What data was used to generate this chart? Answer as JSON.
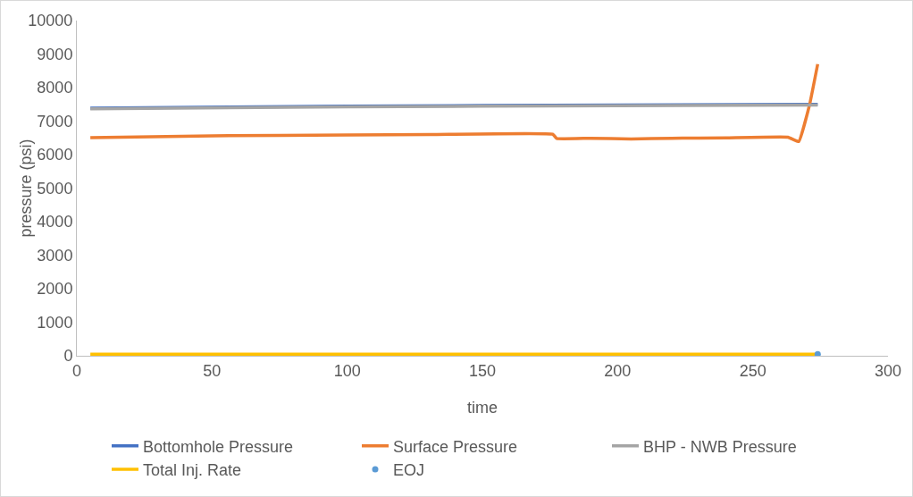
{
  "chart_data": {
    "type": "line",
    "xlabel": "time",
    "ylabel": "pressure (psi)",
    "xlim": [
      0,
      300
    ],
    "xticks": [
      0,
      50,
      100,
      150,
      200,
      250,
      300
    ],
    "ylim": [
      0,
      10000
    ],
    "yticks": [
      0,
      1000,
      2000,
      3000,
      4000,
      5000,
      6000,
      7000,
      8000,
      9000,
      10000
    ],
    "grid": false,
    "legend": "bottom",
    "line_style": "solid",
    "marker": "none",
    "series": [
      {
        "name": "Bottomhole Pressure",
        "color": "#4472c4",
        "x": [
          5,
          100,
          200,
          274
        ],
        "values": [
          7390,
          7450,
          7480,
          7500
        ]
      },
      {
        "name": "Surface Pressure",
        "color": "#ed7d31",
        "x": [
          5,
          50,
          100,
          131,
          176,
          177.5,
          190,
          205,
          220,
          240,
          263,
          267,
          271,
          274
        ],
        "values": [
          6510,
          6560,
          6590,
          6600,
          6610,
          6480,
          6490,
          6470,
          6490,
          6500,
          6520,
          6390,
          7490,
          8700
        ]
      },
      {
        "name": "BHP - NWB Pressure",
        "color": "#a5a5a5",
        "x": [
          5,
          100,
          200,
          274
        ],
        "values": [
          7370,
          7430,
          7460,
          7480
        ]
      },
      {
        "name": "Total Inj. Rate",
        "color": "#ffc000",
        "x": [
          5,
          274
        ],
        "values": [
          50,
          50
        ]
      },
      {
        "name": "EOJ",
        "color": "#5b9bd5",
        "type": "scatter",
        "marker": "circle",
        "x": [
          274
        ],
        "values": [
          50
        ]
      }
    ]
  }
}
